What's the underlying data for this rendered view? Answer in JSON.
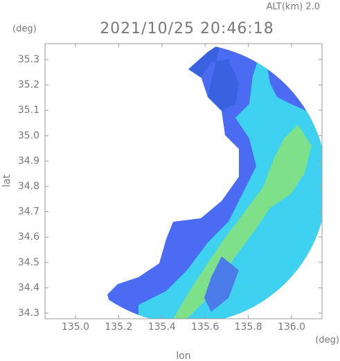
{
  "chart_data": {
    "type": "radar-map",
    "title": "2021/10/25 20:46:18",
    "altitude_label": "ALT(km)  2.0",
    "y_unit": "(deg)",
    "x_unit": "(deg)",
    "x_label": "lon",
    "y_label": "lat",
    "xlim": [
      134.859,
      136.141
    ],
    "ylim": [
      34.278,
      35.363
    ],
    "xticks": [
      {
        "value": 135,
        "label": "135.0"
      },
      135.2,
      135.4,
      135.6,
      135.8,
      {
        "value": 136,
        "label": "136.0"
      }
    ],
    "yticks": [
      34.3,
      34.4,
      34.5,
      34.6,
      34.7,
      34.8,
      34.9,
      {
        "value": 35,
        "label": "35.0"
      },
      35.1,
      35.2,
      35.3
    ]
  }
}
